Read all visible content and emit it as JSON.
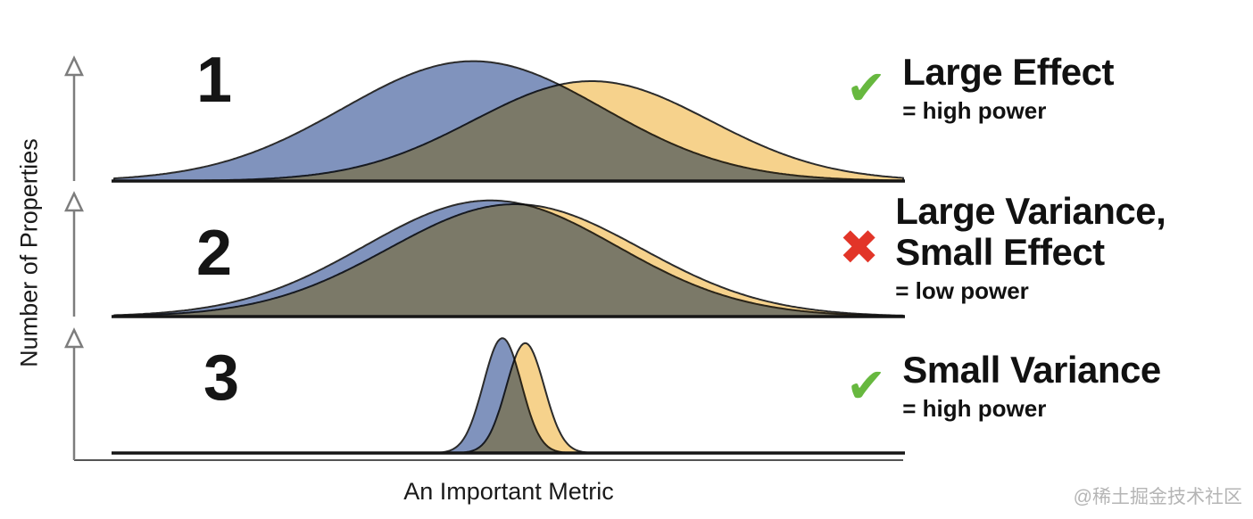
{
  "chart_data": {
    "type": "area",
    "title": "",
    "xlabel": "An Important Metric",
    "ylabel": "Number of Properties",
    "x_range": [
      0,
      1
    ],
    "y_range": [
      0,
      1
    ],
    "grid": false,
    "legend": "none",
    "panels": [
      {
        "id": 1,
        "label": "1",
        "series": [
          {
            "name": "group-a-density",
            "color": "#8093bd",
            "mean": 0.455,
            "sd": 0.165,
            "peak": 0.96
          },
          {
            "name": "group-b-density",
            "color": "#f6d28c",
            "mean": 0.605,
            "sd": 0.15,
            "peak": 0.8
          }
        ],
        "annotation": {
          "icon": "check-icon",
          "icon_color": "#67b83f",
          "title_lines": [
            "Large Effect"
          ],
          "subtitle": "= high power"
        }
      },
      {
        "id": 2,
        "label": "2",
        "series": [
          {
            "name": "group-a-density",
            "color": "#8093bd",
            "mean": 0.477,
            "sd": 0.16,
            "peak": 0.93
          },
          {
            "name": "group-b-density",
            "color": "#f6d28c",
            "mean": 0.508,
            "sd": 0.16,
            "peak": 0.9
          }
        ],
        "annotation": {
          "icon": "cross-icon",
          "icon_color": "#e23528",
          "title_lines": [
            "Large Variance,",
            "Small Effect"
          ],
          "subtitle": "= low power"
        }
      },
      {
        "id": 3,
        "label": "3",
        "series": [
          {
            "name": "group-a-density",
            "color": "#8093bd",
            "mean": 0.492,
            "sd": 0.024,
            "peak": 0.92
          },
          {
            "name": "group-b-density",
            "color": "#f6d28c",
            "mean": 0.521,
            "sd": 0.024,
            "peak": 0.88
          }
        ],
        "annotation": {
          "icon": "check-icon",
          "icon_color": "#67b83f",
          "title_lines": [
            "Small Variance"
          ],
          "subtitle": "= high power"
        }
      }
    ]
  },
  "axes": {
    "x_label": "An Important Metric",
    "y_label": "Number of Properties"
  },
  "watermark": "@稀土掘金技术社区",
  "style_colors": {
    "curve_outline": "#2b2b2b",
    "baseline": "#161616",
    "arrow": "#7d7d7d",
    "bottom_axis": "#555555"
  }
}
